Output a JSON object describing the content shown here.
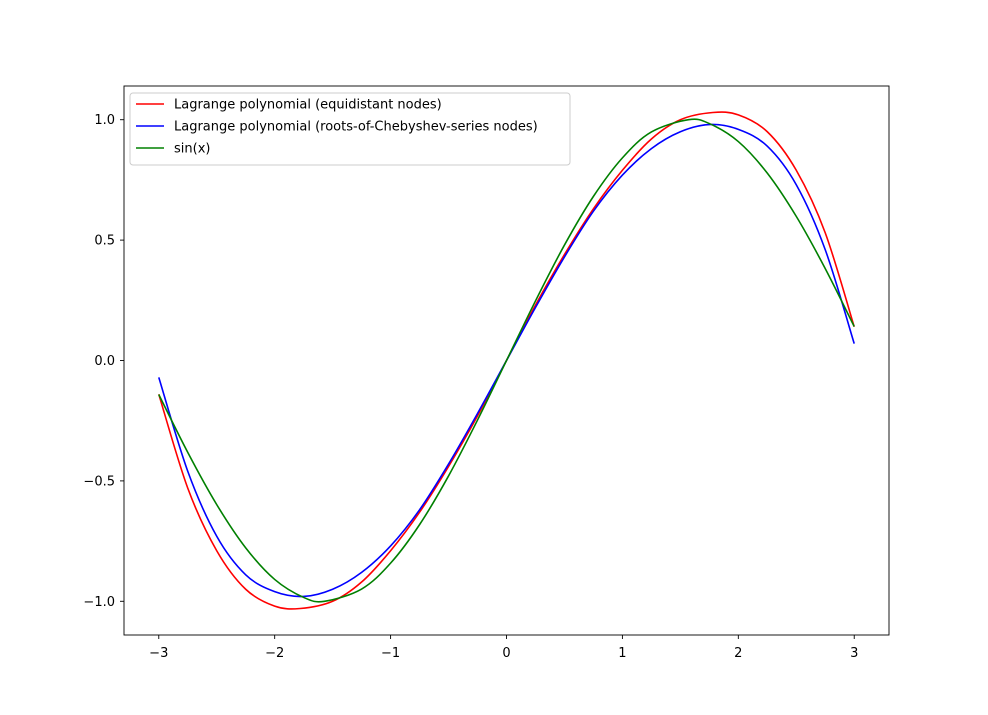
{
  "chart_data": {
    "type": "line",
    "title": "",
    "xlabel": "",
    "ylabel": "",
    "xlim": [
      -3.3,
      3.3
    ],
    "ylim": [
      -1.14,
      1.14
    ],
    "grid": false,
    "legend_position": "top-left",
    "x_ticks": [
      {
        "value": -3,
        "label": "−3"
      },
      {
        "value": -2,
        "label": "−2"
      },
      {
        "value": -1,
        "label": "−1"
      },
      {
        "value": 0,
        "label": "0"
      },
      {
        "value": 1,
        "label": "1"
      },
      {
        "value": 2,
        "label": "2"
      },
      {
        "value": 3,
        "label": "3"
      }
    ],
    "y_ticks": [
      {
        "value": -1.0,
        "label": "−1.0"
      },
      {
        "value": -0.5,
        "label": "−0.5"
      },
      {
        "value": 0.0,
        "label": "0.0"
      },
      {
        "value": 0.5,
        "label": "0.5"
      },
      {
        "value": 1.0,
        "label": "1.0"
      }
    ],
    "series": [
      {
        "name": "Lagrange polynomial (equidistant nodes)",
        "color": "#ff0000",
        "x": [
          -3,
          -2.75,
          -2.5,
          -2.25,
          -2,
          -1.78,
          -1.5,
          -1.25,
          -1,
          -0.75,
          -0.5,
          -0.25,
          0,
          0.25,
          0.5,
          0.75,
          1,
          1.25,
          1.5,
          1.78,
          2,
          2.25,
          2.5,
          2.75,
          3
        ],
        "y": [
          -0.14,
          -0.53,
          -0.79,
          -0.95,
          -1.02,
          -1.03,
          -1.0,
          -0.92,
          -0.79,
          -0.63,
          -0.44,
          -0.23,
          0.0,
          0.23,
          0.44,
          0.63,
          0.79,
          0.92,
          1.0,
          1.03,
          1.02,
          0.95,
          0.79,
          0.53,
          0.14
        ]
      },
      {
        "name": "Lagrange polynomial (roots-of-Chebyshev-series nodes)",
        "color": "#0000ff",
        "x": [
          -3,
          -2.75,
          -2.5,
          -2.25,
          -2,
          -1.75,
          -1.5,
          -1.25,
          -1,
          -0.75,
          -0.5,
          -0.25,
          0,
          0.25,
          0.5,
          0.75,
          1,
          1.25,
          1.5,
          1.75,
          2,
          2.25,
          2.5,
          2.75,
          3
        ],
        "y": [
          -0.07,
          -0.46,
          -0.73,
          -0.89,
          -0.96,
          -0.98,
          -0.95,
          -0.88,
          -0.77,
          -0.62,
          -0.43,
          -0.22,
          0.0,
          0.22,
          0.43,
          0.62,
          0.77,
          0.88,
          0.95,
          0.98,
          0.96,
          0.89,
          0.73,
          0.46,
          0.07
        ]
      },
      {
        "name": "sin(x)",
        "color": "#008000",
        "x": [
          -3,
          -2.75,
          -2.5,
          -2.25,
          -2,
          -1.75,
          -1.5708,
          -1.25,
          -1,
          -0.75,
          -0.5,
          -0.25,
          0,
          0.25,
          0.5,
          0.75,
          1,
          1.25,
          1.5708,
          1.75,
          2,
          2.25,
          2.5,
          2.75,
          3
        ],
        "y": [
          -0.1411,
          -0.3817,
          -0.5985,
          -0.7781,
          -0.9093,
          -0.984,
          -1.0,
          -0.949,
          -0.8415,
          -0.6816,
          -0.4794,
          -0.2474,
          0.0,
          0.2474,
          0.4794,
          0.6816,
          0.8415,
          0.949,
          1.0,
          0.984,
          0.9093,
          0.7781,
          0.5985,
          0.3817,
          0.1411
        ]
      }
    ]
  }
}
